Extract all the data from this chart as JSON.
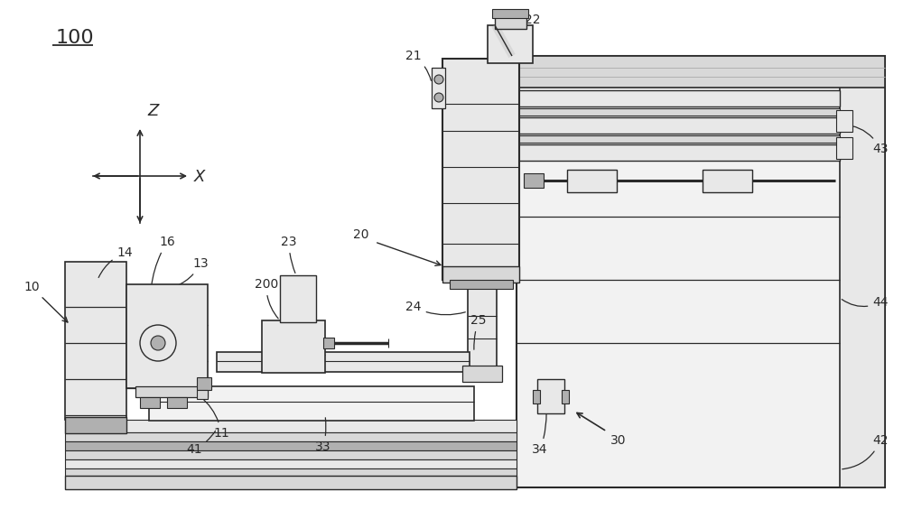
{
  "bg_color": "#ffffff",
  "lc": "#2a2a2a",
  "lg": "#d8d8d8",
  "mg": "#b0b0b0",
  "fg": "#f2f2f2",
  "eg": "#e8e8e8"
}
